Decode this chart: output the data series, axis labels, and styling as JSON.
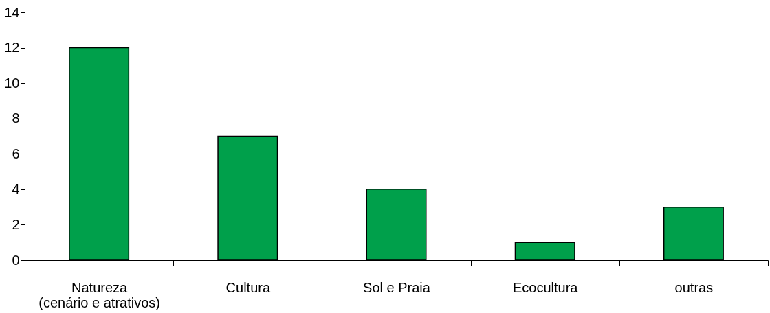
{
  "chart_data": {
    "type": "bar",
    "categories": [
      "Natureza\n(cenário e atrativos)",
      "Cultura",
      "Sol e Praia",
      "Ecocultura",
      "outras"
    ],
    "values": [
      12,
      7,
      4,
      1,
      3
    ],
    "color": "#00a04b",
    "ylim": [
      0,
      14
    ],
    "yticks": [
      0,
      2,
      4,
      6,
      8,
      10,
      12,
      14
    ],
    "grid": false
  }
}
